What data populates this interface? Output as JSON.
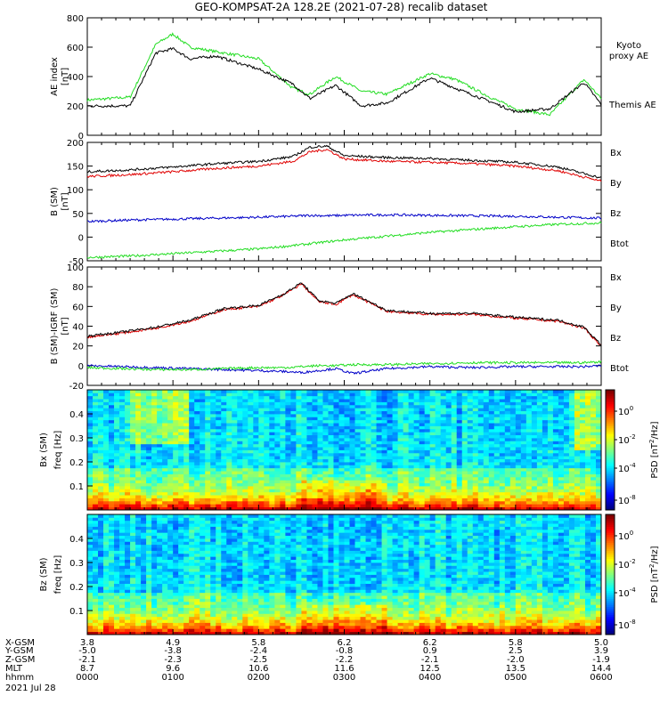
{
  "title": "GEO-KOMPSAT-2A 128.2E (2021-07-28) recalib dataset",
  "colors": {
    "black": "#000000",
    "green": "#22dd22",
    "red": "#e00000",
    "blue": "#0000c8"
  },
  "chart_data": [
    {
      "type": "line",
      "ylabel": "AE index",
      "yunit": "[nT]",
      "ylim": [
        0,
        800
      ],
      "yticks": [
        "0",
        "200",
        "400",
        "600",
        "800"
      ],
      "x_hours": [
        0,
        0.5,
        0.8,
        1.0,
        1.2,
        1.5,
        2.0,
        2.4,
        2.6,
        2.9,
        3.2,
        3.5,
        4.0,
        4.3,
        4.7,
        5.0,
        5.4,
        5.8,
        6.0
      ],
      "series": [
        {
          "name": "Kyoto proxy AE",
          "color": "#22dd22",
          "values": [
            240,
            260,
            620,
            690,
            600,
            570,
            520,
            320,
            280,
            400,
            300,
            280,
            420,
            380,
            260,
            180,
            140,
            380,
            250
          ]
        },
        {
          "name": "Themis AE",
          "color": "#000000",
          "values": [
            200,
            200,
            560,
            590,
            520,
            540,
            450,
            350,
            250,
            340,
            200,
            220,
            390,
            320,
            230,
            160,
            180,
            360,
            210
          ]
        }
      ],
      "legend": [
        "Kyoto proxy AE",
        "Themis AE"
      ]
    },
    {
      "type": "line",
      "ylabel": "B (SM)",
      "yunit": "[nT]",
      "ylim": [
        -50,
        200
      ],
      "yticks": [
        "-50",
        "0",
        "50",
        "100",
        "150",
        "200"
      ],
      "x_hours": [
        0,
        0.5,
        1.0,
        1.5,
        2.0,
        2.4,
        2.6,
        2.8,
        3.0,
        3.5,
        4.0,
        4.5,
        5.0,
        5.5,
        6.0
      ],
      "series": [
        {
          "name": "Bx",
          "color": "#0000c8",
          "values": [
            33,
            36,
            38,
            40,
            42,
            44,
            46,
            45,
            46,
            47,
            46,
            45,
            44,
            42,
            40
          ]
        },
        {
          "name": "By",
          "color": "#22dd22",
          "values": [
            -43,
            -40,
            -35,
            -30,
            -25,
            -18,
            -14,
            -10,
            -6,
            2,
            10,
            16,
            22,
            27,
            30
          ]
        },
        {
          "name": "Bz",
          "color": "#e00000",
          "values": [
            128,
            132,
            138,
            145,
            150,
            160,
            180,
            185,
            165,
            160,
            158,
            155,
            150,
            140,
            118
          ]
        },
        {
          "name": "Btot",
          "color": "#000000",
          "values": [
            138,
            142,
            148,
            155,
            160,
            170,
            190,
            192,
            172,
            168,
            166,
            162,
            158,
            148,
            125
          ]
        }
      ],
      "legend": [
        "Bx",
        "By",
        "Bz",
        "Btot"
      ]
    },
    {
      "type": "line",
      "ylabel": "B (SM)-IGRF (SM)",
      "yunit": "[nT]",
      "ylim": [
        -20,
        100
      ],
      "yticks": [
        "-20",
        "0",
        "20",
        "40",
        "60",
        "80",
        "100"
      ],
      "x_hours": [
        0,
        0.4,
        0.8,
        1.2,
        1.6,
        2.0,
        2.3,
        2.5,
        2.7,
        2.9,
        3.1,
        3.5,
        4.0,
        4.5,
        5.0,
        5.5,
        5.8,
        6.0
      ],
      "series": [
        {
          "name": "Bx",
          "color": "#0000c8",
          "values": [
            0,
            -1,
            -2,
            -3,
            -4,
            -5,
            -6,
            -7,
            -5,
            -3,
            -8,
            -3,
            -1,
            -2,
            -1,
            -1,
            -1,
            0
          ]
        },
        {
          "name": "By",
          "color": "#22dd22",
          "values": [
            -2,
            -3,
            -4,
            -4,
            -3,
            -2,
            -2,
            -1,
            0,
            0,
            1,
            1,
            2,
            3,
            3,
            3,
            3,
            4
          ]
        },
        {
          "name": "Bz",
          "color": "#e00000",
          "values": [
            29,
            33,
            38,
            45,
            57,
            60,
            72,
            83,
            65,
            62,
            72,
            55,
            52,
            52,
            48,
            45,
            38,
            20
          ]
        },
        {
          "name": "Btot",
          "color": "#000000",
          "values": [
            30,
            34,
            39,
            46,
            58,
            61,
            73,
            84,
            66,
            63,
            73,
            56,
            53,
            53,
            49,
            46,
            39,
            21
          ]
        }
      ],
      "legend": [
        "Bx",
        "By",
        "Bz",
        "Btot"
      ]
    },
    {
      "type": "heatmap",
      "ylabel": "Bx (SM)",
      "y2label": "freq",
      "yunit": "[Hz]",
      "ylim": [
        0,
        0.5
      ],
      "yticks": [
        "0.1",
        "0.2",
        "0.3",
        "0.4"
      ],
      "colorbar": {
        "label": "PSD [nT",
        "label_sup": "2",
        "label_end": "/Hz]",
        "ticks": [
          [
            "10",
            "0"
          ],
          [
            "10",
            "-2"
          ],
          [
            "10",
            "-4"
          ],
          [
            "10",
            "-8"
          ]
        ]
      }
    },
    {
      "type": "heatmap",
      "ylabel": "Bz (SM)",
      "y2label": "freq",
      "yunit": "[Hz]",
      "ylim": [
        0,
        0.5
      ],
      "yticks": [
        "0.1",
        "0.2",
        "0.3",
        "0.4"
      ],
      "colorbar": {
        "label": "PSD [nT",
        "label_sup": "2",
        "label_end": "/Hz]",
        "ticks": [
          [
            "10",
            "0"
          ],
          [
            "10",
            "-2"
          ],
          [
            "10",
            "-4"
          ],
          [
            "10",
            "-8"
          ]
        ]
      }
    }
  ],
  "ephemeris": {
    "labels": [
      "X-GSM",
      "Y-GSM",
      "Z-GSM",
      "MLT",
      "hhmm"
    ],
    "date": "2021 Jul 28",
    "columns": [
      [
        "3.8",
        "-5.0",
        "-2.1",
        "8.7",
        "0000"
      ],
      [
        "4.9",
        "-3.8",
        "-2.3",
        "9.6",
        "0100"
      ],
      [
        "5.8",
        "-2.4",
        "-2.5",
        "10.6",
        "0200"
      ],
      [
        "6.2",
        "-0.8",
        "-2.2",
        "11.6",
        "0300"
      ],
      [
        "6.2",
        "0.9",
        "-2.1",
        "12.5",
        "0400"
      ],
      [
        "5.8",
        "2.5",
        "-2.0",
        "13.5",
        "0500"
      ],
      [
        "5.0",
        "3.9",
        "-1.9",
        "14.4",
        "0600"
      ]
    ]
  }
}
